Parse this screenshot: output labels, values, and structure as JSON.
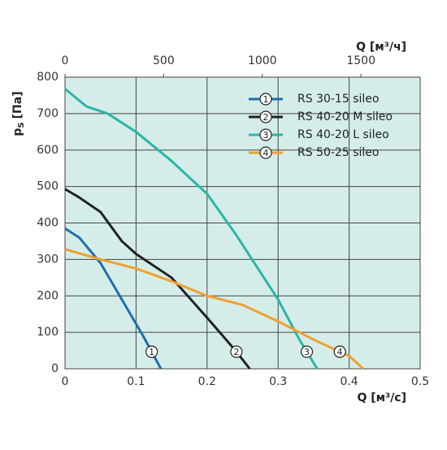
{
  "chart_data": {
    "type": "line",
    "x_label": "Q [м³/с]",
    "x2_label": "Q [м³/ч]",
    "y_label": "p",
    "y_label_sub": "S",
    "y_label_unit": "[Па]",
    "xlim": [
      0,
      0.5
    ],
    "xticks": [
      0,
      0.1,
      0.2,
      0.3,
      0.4,
      0.5
    ],
    "x2lim": [
      0,
      1800
    ],
    "x2ticks": [
      0,
      500,
      1000,
      1500
    ],
    "ylim": [
      0,
      800
    ],
    "yticks": [
      0,
      100,
      200,
      300,
      400,
      500,
      600,
      700,
      800
    ],
    "grid": true,
    "legend": "upper right",
    "series": [
      {
        "name": "RS 30-15 sileo",
        "marker": "1",
        "color": "#1f6fad",
        "x": [
          0,
          0.02,
          0.05,
          0.08,
          0.11,
          0.135
        ],
        "values": [
          385,
          360,
          290,
          190,
          90,
          0
        ]
      },
      {
        "name": "RS 40-20 M sileo",
        "marker": "2",
        "color": "#222222",
        "x": [
          0,
          0.02,
          0.05,
          0.08,
          0.1,
          0.15,
          0.2,
          0.24,
          0.26
        ],
        "values": [
          493,
          470,
          430,
          350,
          315,
          250,
          140,
          50,
          0
        ]
      },
      {
        "name": "RS 40-20 L sileo",
        "marker": "3",
        "color": "#2bb5a8",
        "x": [
          0,
          0.03,
          0.06,
          0.1,
          0.15,
          0.2,
          0.24,
          0.28,
          0.3,
          0.33,
          0.355
        ],
        "values": [
          768,
          720,
          700,
          650,
          570,
          480,
          370,
          250,
          190,
          80,
          0
        ]
      },
      {
        "name": "RS 50-25 sileo",
        "marker": "4",
        "color": "#f0a030",
        "x": [
          0,
          0.05,
          0.1,
          0.15,
          0.2,
          0.25,
          0.3,
          0.35,
          0.4,
          0.42
        ],
        "values": [
          328,
          300,
          275,
          240,
          200,
          175,
          130,
          80,
          35,
          0
        ]
      }
    ]
  }
}
